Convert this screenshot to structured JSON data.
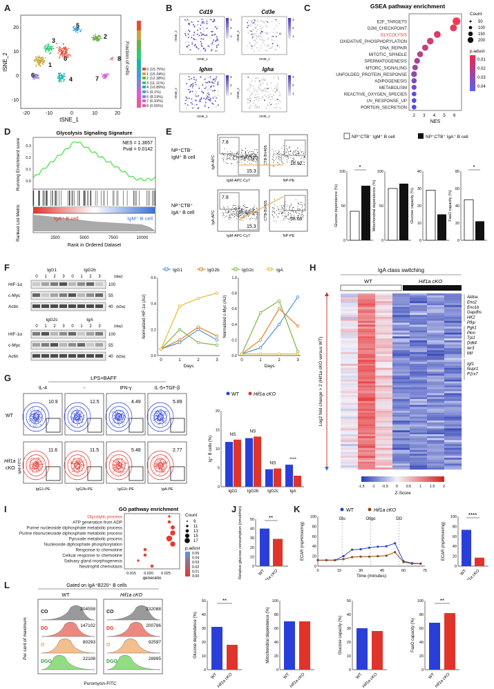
{
  "panels": {
    "A": {
      "label": "A",
      "xlabel": "tSNE_1",
      "ylabel": "tSNE_2",
      "legend_title": "Fraction of cells",
      "cluster_labels": [
        "0",
        "1",
        "2",
        "3",
        "4",
        "5",
        "6",
        "7",
        "8"
      ],
      "legend_items": [
        "0 (15.75%)",
        "1 (15.34%)",
        "2 (12.38%)",
        "3 (11.11%)",
        "4 (10.89%)",
        "5 (9.1%)",
        "6 (8.19%)",
        "7 (6.93%)",
        "8 (0.55%)"
      ],
      "xticks": [
        "-20",
        "-10",
        "0",
        "10",
        "20"
      ],
      "yticks": [
        "20",
        "10",
        "0",
        "-10"
      ],
      "colors": [
        "#e64b35",
        "#c7a63a",
        "#6ab04c",
        "#2ecc71",
        "#19b6ad",
        "#3aa0dd",
        "#8e7fd6",
        "#d35fd8",
        "#e75a9c"
      ]
    },
    "B": {
      "label": "B",
      "genes": [
        "Cd19",
        "Cd3e",
        "Ighm",
        "Igha"
      ],
      "axis_x": "tSNE_1",
      "axis_y": "tSNE_2",
      "scale_hi": "3",
      "scale_mid": "2",
      "scale_lo": "1"
    },
    "C": {
      "label": "C",
      "title": "GSEA pathway enrichment",
      "xlabel": "NES",
      "terms": [
        "E2F_TARGETS",
        "G2M_CHECKPOINT",
        "GLYCOLYSIS",
        "OXIDATIVE_PHOSPHORYLATION",
        "DNA_REPAIR",
        "MITOTIC_SPINDLE",
        "SPERMATOGENESIS",
        "MTORC_SIGNALING",
        "UNFOLDED_PROTEIN_RESPONSE",
        "ADIPOGENESIS",
        "METABOLISM",
        "REACTIVE_OXYGEN_SPECIES",
        "UV_RESPONSE_UP",
        "PORTEIN_SECRETION"
      ],
      "highlight": "GLYCOLYSIS",
      "count_title": "Count",
      "count_vals": [
        "50",
        "100",
        "150",
        "200"
      ],
      "padj_title": "p.adust",
      "padj_vals": [
        "0.01",
        "0.02",
        "0.03",
        "0.04"
      ],
      "xticks": [
        "2",
        "3",
        "4",
        "5",
        "6"
      ]
    },
    "D": {
      "label": "D",
      "title": "Glycolysis Signaling Signature",
      "nes": "NES = 1.3657",
      "pval": "Pval = 0.0142",
      "ylabel1": "Running Enrichment score",
      "ylabel2": "Ranked List Metric",
      "xlabel": "Rank in Ordered Dataset",
      "left_group": "IgA⁺ B cell",
      "right_group": "IgM⁺ B cell",
      "xticks": [
        "2500",
        "5000",
        "7500",
        "10000"
      ],
      "yticks1": [
        "0.3",
        "0.2",
        "0.1",
        "0.0"
      ]
    },
    "E": {
      "label": "E",
      "row1": "NP⁺CTB⁻ IgM⁺ B cell",
      "row2": "NP⁺CTB⁺ IgA⁺ B cell",
      "q1": "7.8",
      "q2": "15.3",
      "q3": "16.92",
      "q4": "7.8",
      "q5": "15.3",
      "q6": "58.69",
      "ax_iga": "IgA-APC",
      "ax_igm": "IgM-APC-Cy7",
      "ax_ctb": "CTB-BV405",
      "ax_np": "NP-PE",
      "legend1": "NP⁺CTB⁻ IgM⁺ B cell",
      "legend2": "NP⁺CTB⁺ IgA⁺ B cell",
      "bars": [
        {
          "ylabel": "Glucose dependence (%)",
          "v1": 42,
          "v2": 79,
          "max": 100,
          "ticks": [
            "0",
            "50",
            "100"
          ],
          "sig": "*"
        },
        {
          "ylabel": "Mitochondrial dependence (%)",
          "v1": 75,
          "v2": 82,
          "max": 100,
          "ticks": [
            "0",
            "50",
            "100"
          ],
          "sig": ""
        },
        {
          "ylabel": "Glucose capacity (%)",
          "v1": 29,
          "v2": 15,
          "max": 40,
          "ticks": [
            "0",
            "10",
            "20",
            "30",
            "40"
          ],
          "sig": ""
        },
        {
          "ylabel": "FaaO capacity (%)",
          "v1": 47,
          "v2": 22,
          "max": 80,
          "ticks": [
            "0",
            "20",
            "40",
            "60",
            "80"
          ],
          "sig": "*"
        }
      ]
    },
    "F": {
      "label": "F",
      "blots": [
        {
          "a": "IgG1",
          "b": "IgG2b"
        },
        {
          "a": "IgG2c",
          "b": "IgA"
        }
      ],
      "days": [
        "0",
        "1",
        "2",
        "3",
        "0",
        "1",
        "2",
        "3"
      ],
      "day_unit": "(day)",
      "rows": [
        "HIF-1α",
        "c-Myc",
        "Actin"
      ],
      "kda": [
        "100",
        "55",
        "40"
      ],
      "kda_unit": "(kDa)",
      "legend": [
        "IgG1",
        "IgG2b",
        "IgG2c",
        "IgA"
      ],
      "legend_colors": [
        "#4a90d9",
        "#e67e22",
        "#7cb342",
        "#e5b72a"
      ],
      "chart1_ylabel": "Normalized HIF-1α (AU)",
      "chart2_ylabel": "Normalized c-Myc (AU)",
      "xlabel": "Days"
    },
    "G": {
      "label": "G",
      "header": "LPS+BAFF",
      "conds": [
        "IL-4",
        "-",
        "IFN-γ",
        "IL-5+TGF-β"
      ],
      "wt_vals": [
        "10.9",
        "12.5",
        "4.49",
        "5.89"
      ],
      "ko_vals": [
        "11.6",
        "11.5",
        "5.48",
        "2.77"
      ],
      "row_wt": "WT",
      "row_ko": "Hif1a cKO",
      "xaxes": [
        "IgG1-PE",
        "IgG2b-PE",
        "IgG2c-PE",
        "IgA-PE"
      ],
      "yaxis": "IgM-FITC",
      "legend_wt": "WT",
      "legend_ko": "Hif1a cKO",
      "ylabel": "Ig⁺ B cells (%)",
      "cats": [
        "IgG1",
        "IgG2b",
        "IgG2c",
        "IgA"
      ],
      "sig": [
        "NS",
        "NS",
        "NS",
        "****"
      ]
    },
    "H": {
      "label": "H",
      "title": "IgA class switching",
      "wt": "WT",
      "ko": "Hif1a cKO",
      "ylabel": "Log2 fold change > 2 (Hif1a cKO versus WT)",
      "genes": [
        "Aldoa",
        "Eno2",
        "Eno1b",
        "Gapdhs",
        "HK2",
        "Pfkp",
        "Pgk1",
        "Pkm",
        "Tpi1",
        "Ddit4",
        "Ier3",
        "Mif",
        "Igf1",
        "Nupr1",
        "P2rx7"
      ],
      "zlabel": "Z-Score",
      "zticks": [
        "-1.5",
        "-1",
        "-0.5",
        "0",
        "0.5",
        "1",
        "1.5",
        "2"
      ]
    },
    "I": {
      "label": "I",
      "title": "GO pathway enrichment",
      "xlabel": "generatio",
      "terms": [
        "Glycolytic process",
        "ATP generation from ADP",
        "Purine nucleoside diphosphate metabolic process",
        "Purine ribonucleoside diphosphate metabolic process",
        "Pyruvate metabolic process",
        "Nucleoside diphosphate phosphorylation",
        "Response to chemokine",
        "Celluar response to chemokine",
        "Salivary gland morphogenesis",
        "Neutrophil chemotaxis"
      ],
      "highlight": "Glycolytic process",
      "count_title": "Count",
      "count_vals": [
        "9",
        "11",
        "13",
        "15",
        "17"
      ],
      "padj_title": "p.adust",
      "padj_vals": [
        "0.05",
        "0.04",
        "0.03",
        "0.02",
        "0.01",
        "0.00"
      ],
      "xticks": [
        "0.015",
        "0.020",
        "0.025"
      ]
    },
    "J": {
      "label": "J",
      "ylabel": "Relative glucose consumption (nmol/min)",
      "cats": [
        "WT",
        "Hif1a cKO"
      ],
      "v1": 40,
      "v2": 29,
      "max": 50,
      "ticks": [
        "0",
        "10",
        "20",
        "30",
        "40",
        "50"
      ],
      "sig": "**"
    },
    "K": {
      "label": "K",
      "legend_wt": "WT",
      "legend_ko": "Hif1a cKO",
      "inj": [
        "Glu",
        "Oligo",
        "DG"
      ],
      "ylabel": "ECAR (mpH/min/mg)",
      "xlabel": "Time (minutes)",
      "xticks": [
        "0",
        "15",
        "30",
        "45",
        "60",
        "75"
      ],
      "yticks": [
        "0",
        "20",
        "40",
        "60",
        "80",
        "100"
      ],
      "bar_ylabel": "ECAR (mpH/min/mg)",
      "bar_cats": [
        "WT",
        "Hif1a cKO"
      ],
      "bar_v1": 73,
      "bar_v2": 17,
      "bar_ticks": [
        "0",
        "20",
        "40",
        "60",
        "80",
        "100"
      ],
      "bar_sig": "****"
    },
    "L": {
      "label": "L",
      "gate": "Gated on IgA⁺B220⁺ B cells",
      "wt": "WT",
      "ko": "Hif1a cKO",
      "tracks": [
        "CO",
        "DG",
        "O",
        "DGO"
      ],
      "wt_vals": [
        "204558",
        "147102",
        "80293",
        "22108"
      ],
      "ko_vals": [
        "232088",
        "200786",
        "92597",
        "28995"
      ],
      "ylabel": "Per cent of maximum",
      "xlabel": "Puromycin-FITC",
      "bars": [
        {
          "ylabel": "Glucose dependence (%)",
          "v1": 31,
          "v2": 18,
          "max": 50,
          "ticks": [
            "0",
            "10",
            "20",
            "30",
            "40",
            "50"
          ],
          "sig": "**"
        },
        {
          "ylabel": "Mitochondrial dependence (%)",
          "v1": 70,
          "v2": 70,
          "max": 100,
          "ticks": [
            "0",
            "20",
            "40",
            "60",
            "80",
            "100"
          ],
          "sig": ""
        },
        {
          "ylabel": "Glucose capacity (%)",
          "v1": 30,
          "v2": 28,
          "max": 50,
          "ticks": [
            "0",
            "10",
            "20",
            "30",
            "40",
            "50"
          ],
          "sig": ""
        },
        {
          "ylabel": "FaaO capacity (%)",
          "v1": 68,
          "v2": 82,
          "max": 100,
          "ticks": [
            "0",
            "20",
            "40",
            "60",
            "80",
            "100"
          ],
          "sig": "**"
        }
      ]
    }
  },
  "chart_data": [
    {
      "type": "bar",
      "title": "G: Ig+ B cells",
      "categories": [
        "IgG1",
        "IgG2b",
        "IgG2c",
        "IgA"
      ],
      "series": [
        {
          "name": "WT",
          "values": [
            11.8,
            12.8,
            4.6,
            5.8
          ]
        },
        {
          "name": "Hif1a cKO",
          "values": [
            12.4,
            13.2,
            4.8,
            2.9
          ]
        }
      ],
      "ylim": [
        0,
        20
      ],
      "ylabel": "Ig+ B cells (%)"
    },
    {
      "type": "line",
      "title": "F: Normalized HIF-1α",
      "x": [
        0,
        1,
        2,
        3
      ],
      "series": [
        {
          "name": "IgG1",
          "values": [
            0.05,
            0.1,
            0.2,
            0.12
          ]
        },
        {
          "name": "IgG2b",
          "values": [
            0.05,
            0.12,
            0.22,
            0.15
          ]
        },
        {
          "name": "IgG2c",
          "values": [
            0.05,
            0.2,
            0.1,
            0.08
          ]
        },
        {
          "name": "IgA",
          "values": [
            0.05,
            0.38,
            0.44,
            0.48
          ]
        }
      ],
      "ylim": [
        0,
        0.6
      ],
      "yticks": [
        "0.0",
        "0.2",
        "0.4",
        "0.6"
      ],
      "ylabel": "Normalized HIF-1α (AU)"
    },
    {
      "type": "line",
      "title": "F: Normalized c-Myc",
      "x": [
        0,
        1,
        2,
        3
      ],
      "series": [
        {
          "name": "IgG1",
          "values": [
            0.02,
            0.1,
            0.4,
            0.75
          ]
        },
        {
          "name": "IgG2b",
          "values": [
            0.02,
            0.2,
            0.6,
            0.38
          ]
        },
        {
          "name": "IgG2c",
          "values": [
            0.02,
            0.55,
            0.7,
            0.05
          ]
        },
        {
          "name": "IgA",
          "values": [
            0.02,
            0.02,
            0.02,
            0.02
          ]
        }
      ],
      "ylim": [
        0,
        1.0
      ],
      "yticks": [
        "0.0",
        "0.2",
        "0.4",
        "0.6",
        "0.8",
        "1.0"
      ],
      "ylabel": "Normalized c-Myc (AU)"
    },
    {
      "type": "scatter",
      "title": "C: GSEA",
      "nes": [
        6.2,
        5.9,
        4.3,
        3.6,
        3.1,
        2.6,
        2.3,
        2.1,
        2.0,
        2.0,
        2.0,
        2.0,
        2.0,
        2.0
      ],
      "count": [
        200,
        150,
        140,
        130,
        110,
        100,
        90,
        80,
        90,
        70,
        60,
        50,
        50,
        50
      ]
    },
    {
      "type": "scatter",
      "title": "I: GO",
      "generatio": [
        0.026,
        0.026,
        0.027,
        0.027,
        0.026,
        0.027,
        0.019,
        0.019,
        0.017,
        0.021
      ],
      "count": [
        9,
        11,
        13,
        15,
        17,
        15,
        11,
        11,
        9,
        11
      ]
    },
    {
      "type": "line",
      "title": "K: ECAR",
      "x": [
        0,
        6,
        12,
        18,
        24,
        30,
        36,
        42,
        48,
        54,
        60,
        66,
        72
      ],
      "series": [
        {
          "name": "WT",
          "values": [
            12,
            12,
            12,
            20,
            33,
            34,
            37,
            39,
            40,
            46,
            10,
            6,
            5
          ]
        },
        {
          "name": "Hif1a cKO",
          "values": [
            12,
            12,
            12,
            14,
            18,
            19,
            19,
            20,
            21,
            28,
            8,
            5,
            5
          ]
        }
      ],
      "ylim": [
        0,
        100
      ]
    }
  ]
}
